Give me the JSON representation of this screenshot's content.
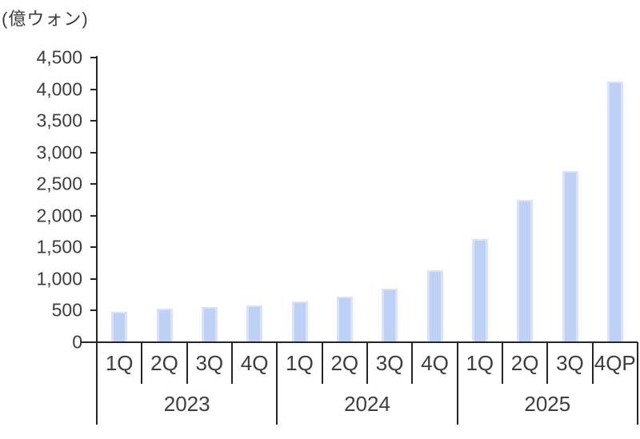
{
  "chart_data": {
    "type": "bar",
    "title": "",
    "unit_label": "(億ウォン)",
    "categories": [
      "1Q",
      "2Q",
      "3Q",
      "4Q",
      "1Q",
      "2Q",
      "3Q",
      "4Q",
      "1Q",
      "2Q",
      "3Q",
      "4QP"
    ],
    "year_groups": [
      {
        "label": "2023",
        "span": 4
      },
      {
        "label": "2024",
        "span": 4
      },
      {
        "label": "2025",
        "span": 4
      }
    ],
    "values": [
      480,
      525,
      555,
      580,
      645,
      720,
      845,
      1140,
      1630,
      2250,
      2710,
      4120
    ],
    "ylim": [
      0,
      4500
    ],
    "ytick_step": 500,
    "ytick_labels": [
      "0",
      "500",
      "1,000",
      "1,500",
      "2,000",
      "2,500",
      "3,000",
      "3,500",
      "4,000",
      "4,500"
    ],
    "grid": false,
    "legend": "none",
    "bar_fill_color": "#BDD1F5",
    "bar_edge_color": "#D8E2FA",
    "axis_color": "#262626",
    "text_color": "#3d3d3d"
  }
}
